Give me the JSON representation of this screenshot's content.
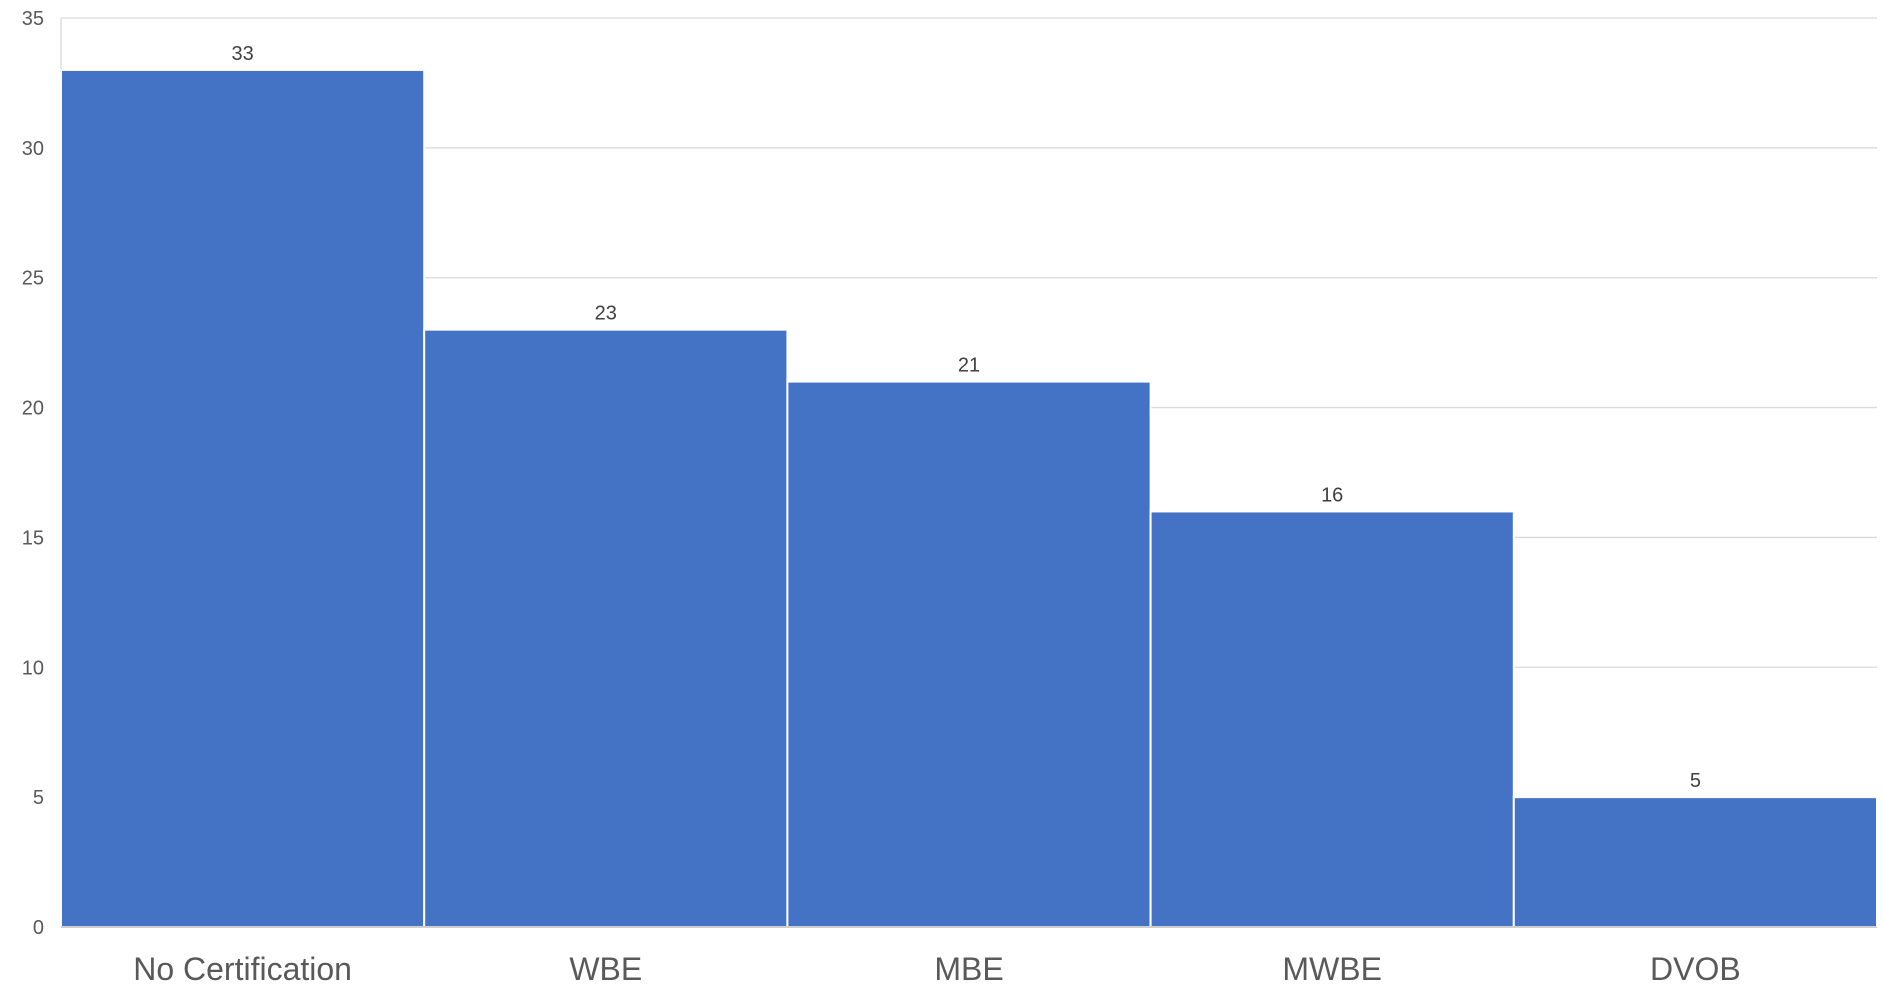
{
  "chart_data": {
    "type": "bar",
    "title": "",
    "xlabel": "",
    "ylabel": "",
    "categories": [
      "No Certification",
      "WBE",
      "MBE",
      "MWBE",
      "DVOB"
    ],
    "values": [
      33,
      23,
      21,
      16,
      5
    ],
    "data_labels": [
      "33",
      "23",
      "21",
      "16",
      "5"
    ],
    "ylim": [
      0,
      35
    ],
    "yticks": [
      0,
      5,
      10,
      15,
      20,
      25,
      30,
      35
    ],
    "ytick_labels": [
      "0",
      "5",
      "10",
      "15",
      "20",
      "25",
      "30",
      "35"
    ],
    "grid": true,
    "legend": "none",
    "colors": {
      "bar": "#4472C4",
      "bar_separator": "#ffffff",
      "grid": "#d9d9d9",
      "axis": "#bfbfbf",
      "tick_text": "#595959",
      "category_text": "#595959",
      "data_label_text": "#404040"
    }
  }
}
